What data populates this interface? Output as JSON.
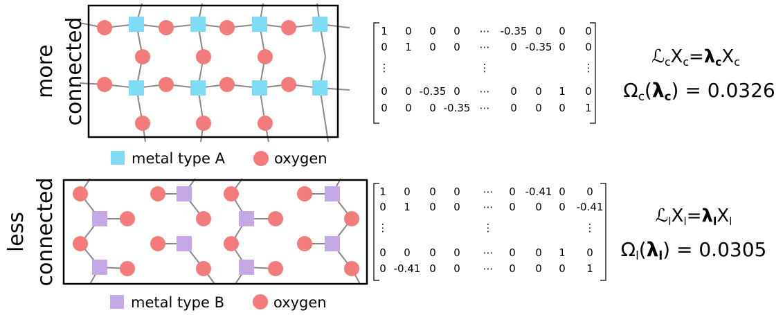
{
  "panels": [
    {
      "label": [
        "more",
        "connected"
      ],
      "legend": [
        "metal type A",
        "oxygen"
      ],
      "matrix": [
        [
          "1",
          "0",
          "0",
          "0",
          "⋯",
          "-0.35",
          "0",
          "0",
          "0"
        ],
        [
          "0",
          "1",
          "0",
          "0",
          "⋯",
          "0",
          "-0.35",
          "0",
          "0"
        ],
        [
          "⋮",
          "⋮",
          "⋮"
        ],
        [
          "0",
          "0",
          "-0.35",
          "0",
          "⋯",
          "0",
          "0",
          "1",
          "0"
        ],
        [
          "0",
          "0",
          "0",
          "-0.35",
          "⋯",
          "0",
          "0",
          "0",
          "1"
        ]
      ],
      "equation": [
        "ℒ",
        "c",
        "X",
        "c",
        "=",
        "λ",
        "c",
        "X",
        "c"
      ],
      "omega": [
        "Ω",
        "c",
        "(",
        "λ",
        "c",
        ")",
        " = 0.0326"
      ]
    },
    {
      "label": [
        "less",
        "connected"
      ],
      "legend": [
        "metal type B",
        "oxygen"
      ],
      "matrix": [
        [
          "1",
          "0",
          "0",
          "0",
          "⋯",
          "0",
          "-0.41",
          "0",
          "0"
        ],
        [
          "0",
          "1",
          "0",
          "0",
          "⋯",
          "0",
          "0",
          "0",
          "-0.41"
        ],
        [
          "⋮",
          "⋮",
          "⋮"
        ],
        [
          "0",
          "0",
          "0",
          "0",
          "⋯",
          "0",
          "0",
          "1",
          "0"
        ],
        [
          "0",
          "-0.41",
          "0",
          "0",
          "⋯",
          "0",
          "0",
          "0",
          "1"
        ]
      ],
      "equation": [
        "ℒ",
        "l",
        "X",
        "l",
        "=",
        "λ",
        "l",
        "X",
        "l"
      ],
      "omega": [
        "Ω",
        "l",
        "(",
        "λ",
        "l",
        ")",
        " = 0.0305"
      ]
    }
  ]
}
